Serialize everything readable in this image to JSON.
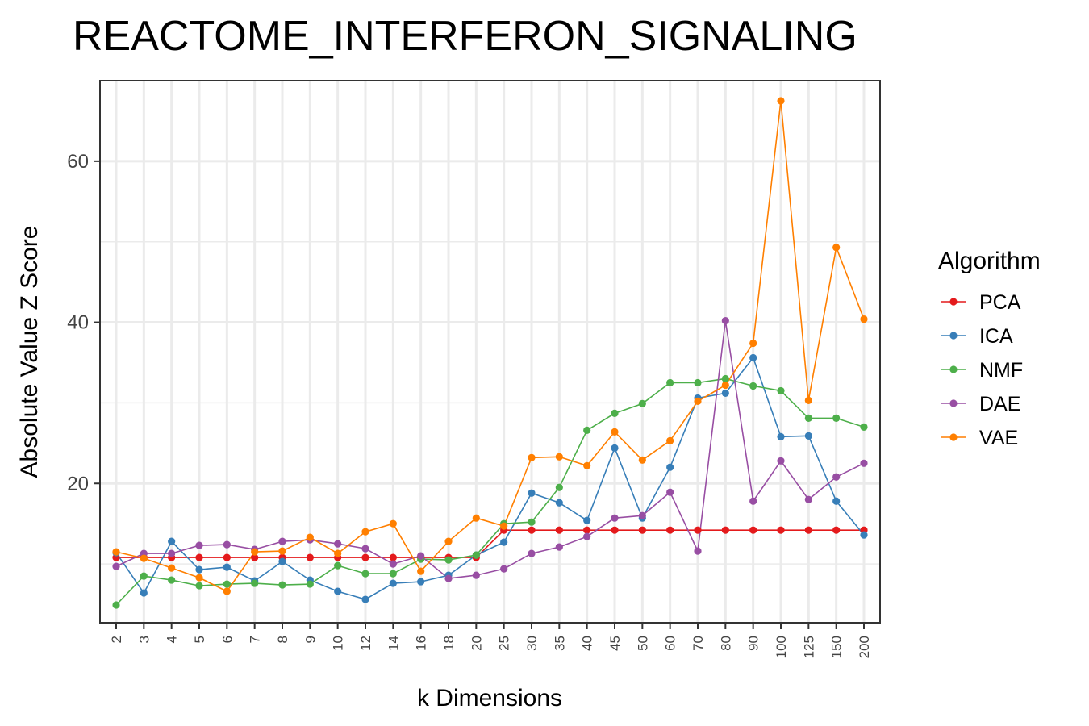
{
  "chart_data": {
    "type": "line",
    "title": "REACTOME_INTERFERON_SIGNALING",
    "xlabel": "k Dimensions",
    "ylabel": "Absolute Value Z Score",
    "categories": [
      "2",
      "3",
      "4",
      "5",
      "6",
      "7",
      "8",
      "9",
      "10",
      "12",
      "14",
      "16",
      "18",
      "20",
      "25",
      "30",
      "35",
      "40",
      "45",
      "50",
      "60",
      "70",
      "80",
      "90",
      "100",
      "125",
      "150",
      "200"
    ],
    "yticks": [
      20,
      40,
      60
    ],
    "ylim": [
      2.7,
      70
    ],
    "grid": true,
    "legend": {
      "title": "Algorithm",
      "position": "right"
    },
    "series": [
      {
        "name": "PCA",
        "color": "#E41A1C",
        "values": [
          10.8,
          10.8,
          10.8,
          10.8,
          10.8,
          10.8,
          10.8,
          10.8,
          10.8,
          10.8,
          10.8,
          10.8,
          10.8,
          10.8,
          14.2,
          14.2,
          14.2,
          14.2,
          14.2,
          14.2,
          14.2,
          14.2,
          14.2,
          14.2,
          14.2,
          14.2,
          14.2,
          14.2
        ]
      },
      {
        "name": "ICA",
        "color": "#377EB8",
        "values": [
          11.4,
          6.4,
          12.8,
          9.3,
          9.6,
          7.9,
          10.3,
          8.0,
          6.6,
          5.6,
          7.6,
          7.8,
          8.6,
          11.1,
          12.7,
          18.8,
          17.6,
          15.4,
          24.4,
          15.7,
          22.0,
          30.6,
          31.2,
          35.6,
          25.8,
          25.9,
          17.8,
          13.6
        ]
      },
      {
        "name": "NMF",
        "color": "#4DAF4A",
        "values": [
          4.9,
          8.5,
          8.0,
          7.3,
          7.5,
          7.6,
          7.4,
          7.5,
          9.8,
          8.8,
          8.8,
          10.6,
          10.5,
          11.1,
          15.0,
          15.2,
          19.5,
          26.6,
          28.7,
          29.9,
          32.5,
          32.5,
          33.0,
          32.1,
          31.5,
          28.1,
          28.1,
          27.0
        ]
      },
      {
        "name": "DAE",
        "color": "#984EA3",
        "values": [
          9.7,
          11.3,
          11.3,
          12.3,
          12.4,
          11.8,
          12.8,
          13.0,
          12.5,
          11.9,
          10.0,
          11.0,
          8.2,
          8.6,
          9.4,
          11.3,
          12.1,
          13.4,
          15.7,
          16.0,
          18.9,
          11.6,
          40.2,
          17.8,
          22.8,
          18.0,
          20.8,
          22.5
        ]
      },
      {
        "name": "VAE",
        "color": "#FF7F00",
        "values": [
          11.5,
          10.7,
          9.5,
          8.3,
          6.6,
          11.5,
          11.6,
          13.3,
          11.3,
          14.0,
          15.0,
          9.1,
          12.8,
          15.7,
          14.7,
          23.2,
          23.3,
          22.2,
          26.4,
          22.9,
          25.3,
          30.2,
          32.2,
          37.4,
          67.5,
          30.3,
          49.3,
          40.4
        ]
      }
    ]
  }
}
